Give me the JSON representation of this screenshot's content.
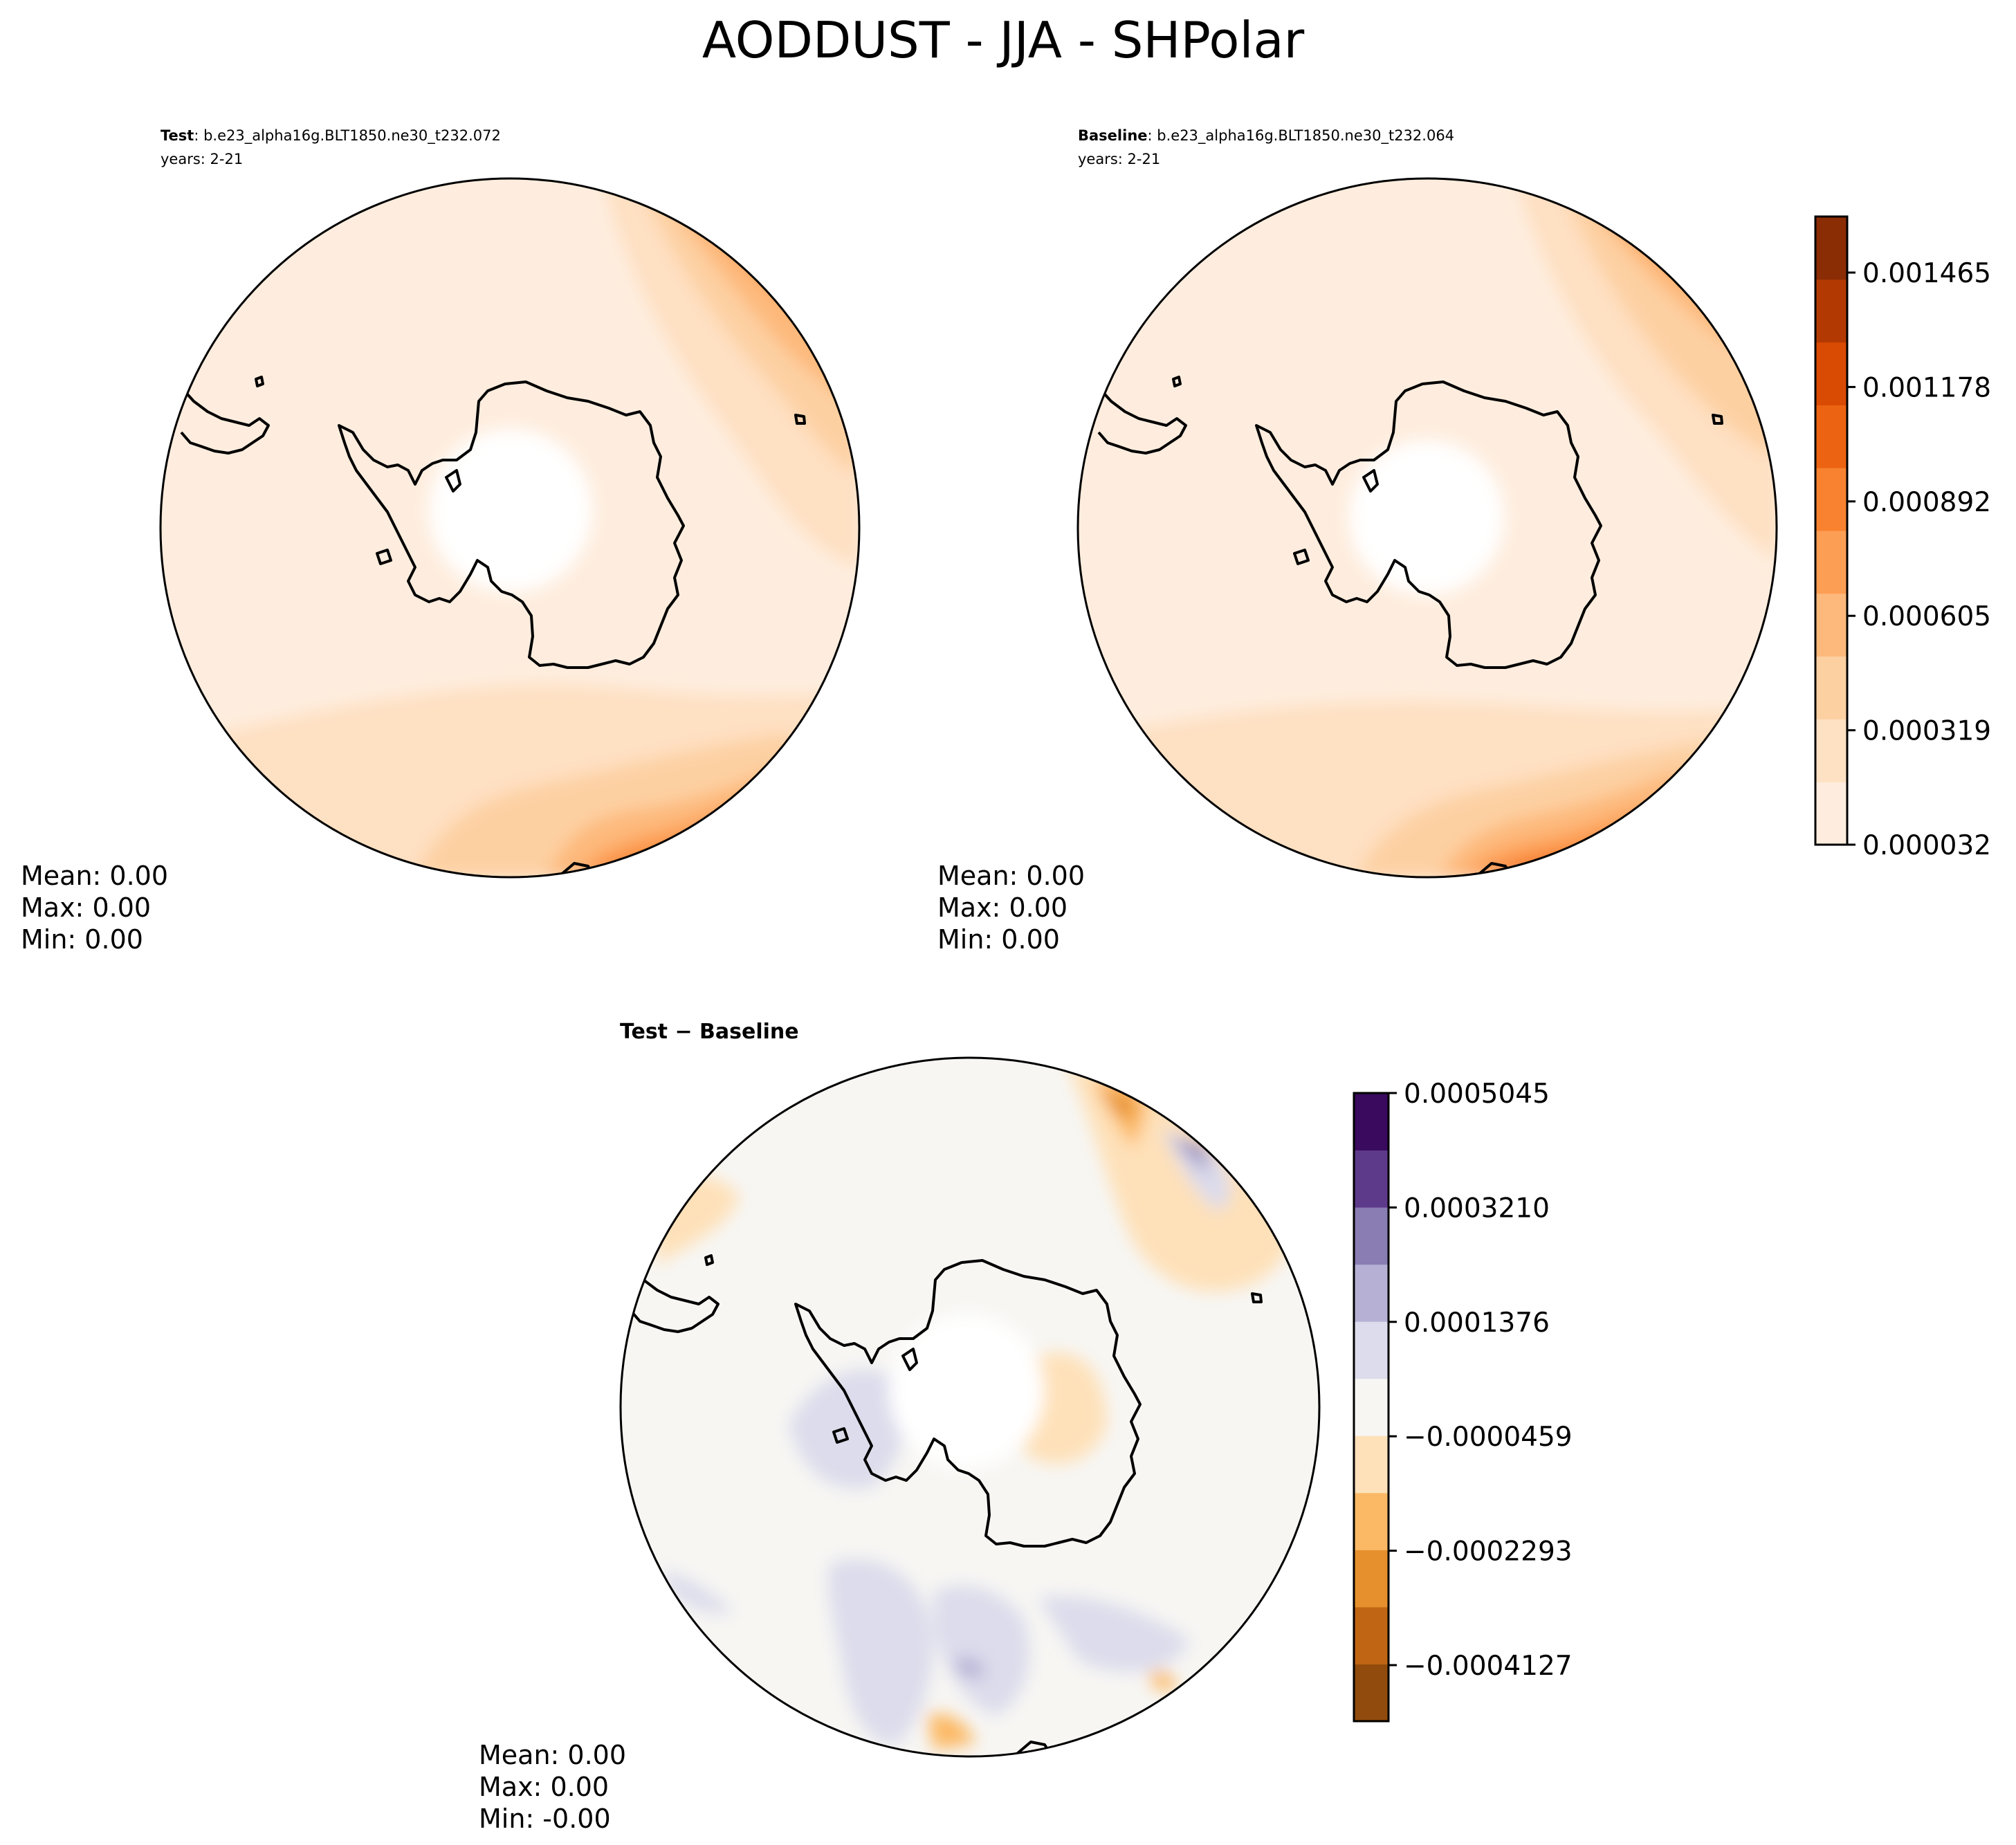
{
  "figure": {
    "title": "AODDUST - JJA - SHPolar"
  },
  "panels": {
    "test": {
      "header_bold": "Test",
      "header_case": ": b.e23_alpha16g.BLT1850.ne30_t232.072",
      "years": "years: 2-21",
      "mean": "Mean:  0.00",
      "max": "Max:  0.00",
      "min": "Min:  0.00"
    },
    "baseline": {
      "header_bold": "Baseline",
      "header_case": ": b.e23_alpha16g.BLT1850.ne30_t232.064",
      "years": "years: 2-21",
      "mean": "Mean:  0.00",
      "max": "Max:  0.00",
      "min": "Min:  0.00"
    },
    "diff": {
      "title": "Test − Baseline",
      "mean": "Mean:  0.00",
      "max": "Max:  0.00",
      "min": "Min: -0.00"
    }
  },
  "colorbars": {
    "main": {
      "ticks": [
        "0.000032",
        "0.000319",
        "0.000605",
        "0.000892",
        "0.001178",
        "0.001465"
      ],
      "colors": [
        "#feedde",
        "#fee0c2",
        "#fdd0a2",
        "#fdb97c",
        "#fd9e55",
        "#f8822f",
        "#ec6412",
        "#d94a02",
        "#b23a02",
        "#8a2c04"
      ]
    },
    "diff": {
      "ticks": [
        "0.0005045",
        "0.0003210",
        "0.0001376",
        "−0.0000459",
        "−0.0002293",
        "−0.0004127"
      ],
      "colors": [
        "#914b0c",
        "#c06513",
        "#e68f2d",
        "#fcb965",
        "#fee1b9",
        "#f7f6f3",
        "#dcdcec",
        "#b6b1d4",
        "#8a7db3",
        "#5e3a8b",
        "#3a0a5e"
      ]
    }
  },
  "chart_data": [
    {
      "type": "heatmap",
      "name": "Test",
      "variable": "AODDUST",
      "season": "JJA",
      "region": "SHPolar",
      "years": "2-21",
      "levels": [
        3.2e-05,
        0.000319,
        0.000605,
        0.000892,
        0.001178,
        0.001465
      ],
      "mean": 0.0,
      "max": 0.0,
      "min": 0.0
    },
    {
      "type": "heatmap",
      "name": "Baseline",
      "variable": "AODDUST",
      "season": "JJA",
      "region": "SHPolar",
      "years": "2-21",
      "levels": [
        3.2e-05,
        0.000319,
        0.000605,
        0.000892,
        0.001178,
        0.001465
      ],
      "mean": 0.0,
      "max": 0.0,
      "min": 0.0
    },
    {
      "type": "heatmap",
      "name": "Test − Baseline",
      "levels": [
        -0.0004127,
        -0.0002293,
        -4.59e-05,
        0.0001376,
        0.000321,
        0.0005045
      ],
      "mean": 0.0,
      "max": 0.0,
      "min": -0.0
    }
  ]
}
